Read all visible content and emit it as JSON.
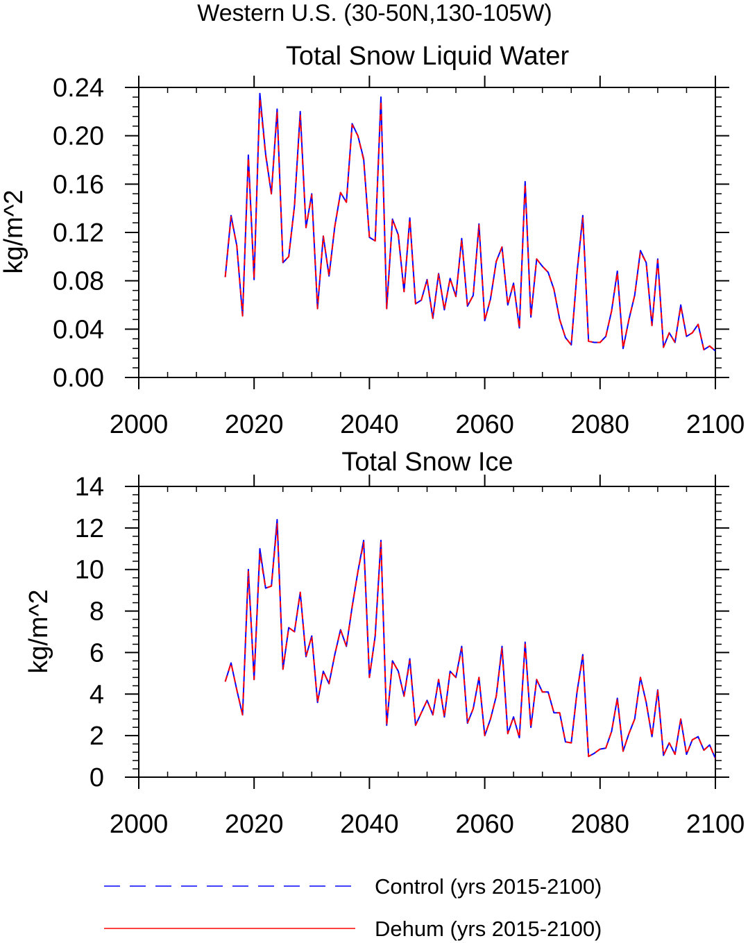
{
  "figure_title": "Western U.S. (30-50N,130-105W)",
  "legend": [
    {
      "label": "Control (yrs 2015-2100)",
      "color": "#0000ff",
      "style": "dashed"
    },
    {
      "label": "Dehum (yrs 2015-2100)",
      "color": "#ff0000",
      "style": "solid"
    }
  ],
  "chart_data": [
    {
      "type": "line",
      "title": "Total Snow Liquid Water",
      "xlabel": "",
      "ylabel": "kg/m^2",
      "xlim": [
        2000,
        2100
      ],
      "ylim": [
        0,
        0.24
      ],
      "xticks": [
        2000,
        2020,
        2040,
        2060,
        2080,
        2100
      ],
      "yticks": [
        0,
        0.04,
        0.08,
        0.12,
        0.16,
        0.2,
        0.24
      ],
      "ytick_labels": [
        "0.00",
        "0.04",
        "0.08",
        "0.12",
        "0.16",
        "0.20",
        "0.24"
      ],
      "x_start": 2015,
      "series": [
        {
          "name": "Control (yrs 2015-2100)",
          "color": "#0000ff",
          "values": [
            0.083,
            0.134,
            0.109,
            0.051,
            0.184,
            0.081,
            0.235,
            0.185,
            0.152,
            0.222,
            0.095,
            0.1,
            0.142,
            0.22,
            0.124,
            0.152,
            0.057,
            0.117,
            0.084,
            0.125,
            0.153,
            0.145,
            0.21,
            0.2,
            0.181,
            0.116,
            0.113,
            0.232,
            0.057,
            0.131,
            0.118,
            0.071,
            0.132,
            0.061,
            0.064,
            0.081,
            0.049,
            0.086,
            0.056,
            0.082,
            0.067,
            0.115,
            0.059,
            0.068,
            0.127,
            0.047,
            0.065,
            0.096,
            0.108,
            0.06,
            0.078,
            0.041,
            0.162,
            0.05,
            0.098,
            0.092,
            0.087,
            0.073,
            0.048,
            0.033,
            0.027,
            0.087,
            0.134,
            0.03,
            0.029,
            0.029,
            0.034,
            0.055,
            0.088,
            0.024,
            0.048,
            0.068,
            0.105,
            0.095,
            0.043,
            0.098,
            0.025,
            0.037,
            0.029,
            0.06,
            0.034,
            0.037,
            0.044,
            0.023,
            0.026,
            0.022
          ]
        },
        {
          "name": "Dehum (yrs 2015-2100)",
          "color": "#ff0000",
          "values": [
            0.083,
            0.133,
            0.109,
            0.051,
            0.182,
            0.082,
            0.231,
            0.184,
            0.152,
            0.22,
            0.095,
            0.1,
            0.142,
            0.217,
            0.124,
            0.151,
            0.057,
            0.117,
            0.084,
            0.125,
            0.153,
            0.145,
            0.209,
            0.2,
            0.18,
            0.116,
            0.113,
            0.229,
            0.057,
            0.131,
            0.118,
            0.071,
            0.131,
            0.061,
            0.064,
            0.081,
            0.049,
            0.086,
            0.056,
            0.082,
            0.067,
            0.114,
            0.059,
            0.068,
            0.126,
            0.047,
            0.065,
            0.096,
            0.108,
            0.06,
            0.078,
            0.041,
            0.16,
            0.05,
            0.098,
            0.092,
            0.087,
            0.073,
            0.048,
            0.033,
            0.027,
            0.087,
            0.132,
            0.03,
            0.029,
            0.029,
            0.034,
            0.055,
            0.087,
            0.024,
            0.048,
            0.068,
            0.104,
            0.095,
            0.043,
            0.097,
            0.025,
            0.037,
            0.029,
            0.059,
            0.034,
            0.037,
            0.044,
            0.023,
            0.026,
            0.022
          ]
        }
      ]
    },
    {
      "type": "line",
      "title": "Total Snow Ice",
      "xlabel": "",
      "ylabel": "kg/m^2",
      "xlim": [
        2000,
        2100
      ],
      "ylim": [
        0,
        14
      ],
      "xticks": [
        2000,
        2020,
        2040,
        2060,
        2080,
        2100
      ],
      "yticks": [
        0,
        2,
        4,
        6,
        8,
        10,
        12,
        14
      ],
      "ytick_labels": [
        "0",
        "2",
        "4",
        "6",
        "8",
        "10",
        "12",
        "14"
      ],
      "x_start": 2015,
      "series": [
        {
          "name": "Control (yrs 2015-2100)",
          "color": "#0000ff",
          "values": [
            4.6,
            5.5,
            4.2,
            3.0,
            10.0,
            4.7,
            11.0,
            9.1,
            9.2,
            12.4,
            5.2,
            7.2,
            7.0,
            8.9,
            5.8,
            6.8,
            3.6,
            5.1,
            4.5,
            5.9,
            7.1,
            6.3,
            8.2,
            9.9,
            11.4,
            4.8,
            6.8,
            11.4,
            2.5,
            5.6,
            5.1,
            3.9,
            5.7,
            2.5,
            3.1,
            3.7,
            3.0,
            4.7,
            2.9,
            5.1,
            4.8,
            6.3,
            2.6,
            3.3,
            4.8,
            2.0,
            2.8,
            3.9,
            6.3,
            2.1,
            2.9,
            1.9,
            6.5,
            2.4,
            4.7,
            4.1,
            4.1,
            3.1,
            3.1,
            1.7,
            1.65,
            4.1,
            5.9,
            1.0,
            1.15,
            1.35,
            1.4,
            2.2,
            3.8,
            1.25,
            2.1,
            2.8,
            4.8,
            3.6,
            1.95,
            4.2,
            1.05,
            1.65,
            1.1,
            2.8,
            1.1,
            1.8,
            1.95,
            1.3,
            1.55,
            0.9
          ]
        },
        {
          "name": "Dehum (yrs 2015-2100)",
          "color": "#ff0000",
          "values": [
            4.6,
            5.5,
            4.2,
            3.0,
            9.9,
            4.7,
            10.8,
            9.1,
            9.2,
            12.2,
            5.2,
            7.2,
            7.0,
            8.9,
            5.8,
            6.8,
            3.6,
            5.1,
            4.5,
            5.9,
            7.1,
            6.3,
            8.2,
            9.9,
            11.3,
            4.8,
            6.8,
            11.3,
            2.5,
            5.6,
            5.1,
            3.9,
            5.6,
            2.5,
            3.1,
            3.7,
            3.0,
            4.7,
            2.9,
            5.1,
            4.8,
            6.2,
            2.6,
            3.3,
            4.8,
            2.0,
            2.8,
            3.9,
            6.2,
            2.1,
            2.9,
            1.9,
            6.4,
            2.4,
            4.7,
            4.1,
            4.1,
            3.1,
            3.1,
            1.7,
            1.65,
            4.1,
            5.8,
            1.0,
            1.15,
            1.35,
            1.4,
            2.2,
            3.8,
            1.25,
            2.1,
            2.8,
            4.8,
            3.6,
            1.95,
            4.2,
            1.05,
            1.65,
            1.1,
            2.8,
            1.1,
            1.8,
            1.95,
            1.3,
            1.55,
            0.9
          ]
        }
      ]
    }
  ]
}
